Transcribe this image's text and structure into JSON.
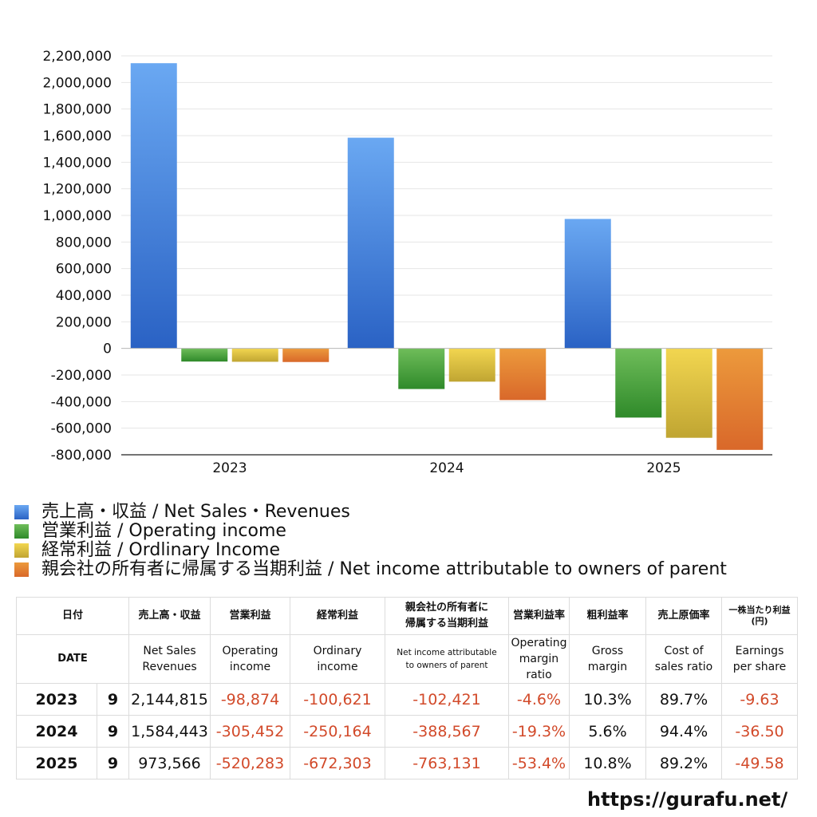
{
  "colors": {
    "net_sales": [
      "#6aa8f2",
      "#2a62c4"
    ],
    "operating_income": [
      "#6fbd5a",
      "#2f8a2a"
    ],
    "ordinary_income": [
      "#f2d650",
      "#c0a532"
    ],
    "net_income": [
      "#ec9a3c",
      "#d9682a"
    ],
    "negative_text": "#d24a2a"
  },
  "chart_data": {
    "type": "bar",
    "categories": [
      "2023",
      "2024",
      "2025"
    ],
    "series": [
      {
        "name": "売上高・収益 / Net Sales・Revenues",
        "key": "net_sales",
        "values": [
          2144815,
          1584443,
          973566
        ]
      },
      {
        "name": "営業利益 / Operating income",
        "key": "operating_income",
        "values": [
          -98874,
          -305452,
          -520283
        ]
      },
      {
        "name": "経常利益 / Ordlinary Income",
        "key": "ordinary_income",
        "values": [
          -100621,
          -250164,
          -672303
        ]
      },
      {
        "name": "親会社の所有者に帰属する当期利益 / Net income attributable to owners of parent",
        "key": "net_income",
        "values": [
          -102421,
          -388567,
          -763131
        ]
      }
    ],
    "ylim": [
      -800000,
      2200000
    ],
    "ytick_step": 200000,
    "ytick_labels": [
      "2,200,000",
      "2,000,000",
      "1,800,000",
      "1,600,000",
      "1,400,000",
      "1,200,000",
      "1,000,000",
      "800,000",
      "600,000",
      "400,000",
      "200,000",
      "0",
      "-200,000",
      "-400,000",
      "-600,000",
      "-800,000"
    ],
    "grid": true,
    "legend_position": "bottom-left"
  },
  "legend": [
    "売上高・収益 / Net Sales・Revenues",
    "営業利益 / Operating income",
    "経常利益 / Ordlinary Income",
    "親会社の所有者に帰属する当期利益 / Net income attributable to owners of parent"
  ],
  "table": {
    "headers_jp": {
      "date": "日付",
      "sales": "売上高・収益",
      "operating": "営業利益",
      "ordinary": "経常利益",
      "net_line1": "親会社の所有者に",
      "net_line2": "帰属する当期利益",
      "op_margin": "営業利益率",
      "gross": "粗利益率",
      "cost": "売上原価率",
      "eps_line1": "一株当たり利益",
      "eps_line2": "(円)"
    },
    "headers_en": {
      "date": "DATE",
      "sales_1": "Net Sales",
      "sales_2": "Revenues",
      "operating_1": "Operating",
      "operating_2": "income",
      "ordinary_1": "Ordinary",
      "ordinary_2": "income",
      "net_1": "Net income attributable",
      "net_2": "to owners of parent",
      "op_margin_1": "Operating",
      "op_margin_2": "margin",
      "op_margin_3": "ratio",
      "gross_1": "Gross",
      "gross_2": "margin",
      "cost_1": "Cost of",
      "cost_2": "sales ratio",
      "eps_1": "Earnings",
      "eps_2": "per share"
    },
    "rows": [
      {
        "year": "2023",
        "month": "9",
        "sales": "2,144,815",
        "operating": "-98,874",
        "ordinary": "-100,621",
        "net": "-102,421",
        "op_margin": "-4.6%",
        "gross": "10.3%",
        "cost": "89.7%",
        "eps": "-9.63"
      },
      {
        "year": "2024",
        "month": "9",
        "sales": "1,584,443",
        "operating": "-305,452",
        "ordinary": "-250,164",
        "net": "-388,567",
        "op_margin": "-19.3%",
        "gross": "5.6%",
        "cost": "94.4%",
        "eps": "-36.50"
      },
      {
        "year": "2025",
        "month": "9",
        "sales": "973,566",
        "operating": "-520,283",
        "ordinary": "-672,303",
        "net": "-763,131",
        "op_margin": "-53.4%",
        "gross": "10.8%",
        "cost": "89.2%",
        "eps": "-49.58"
      }
    ]
  },
  "watermark": "https://gurafu.net/"
}
